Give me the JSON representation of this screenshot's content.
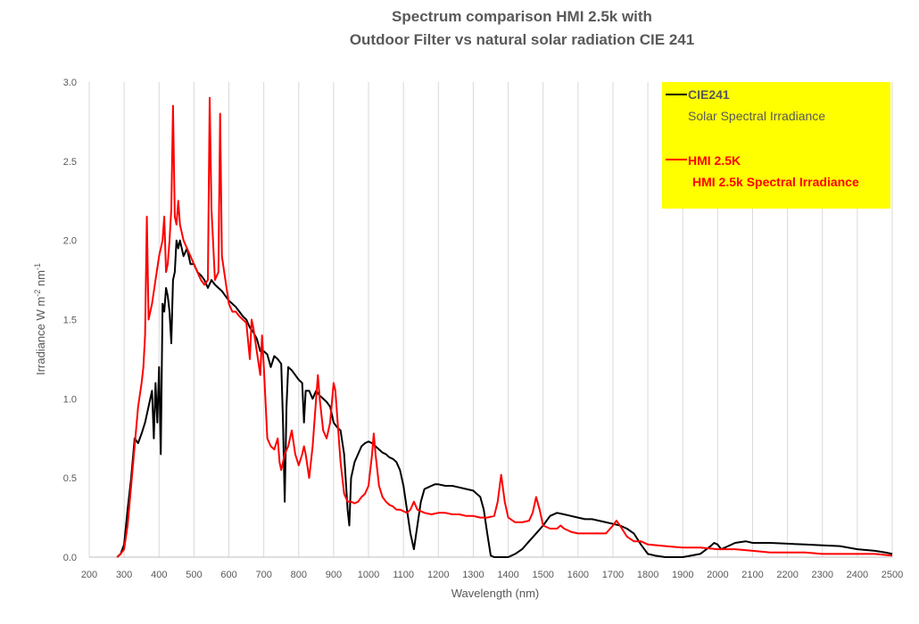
{
  "chart_data": {
    "type": "line",
    "title_lines": [
      "Spectrum comparison HMI 2.5k with",
      "Outdoor Filter vs natural solar radiation CIE 241"
    ],
    "xlabel": "Wavelength (nm)",
    "ylabel_main": "Irradiance  W m",
    "ylabel_sup1": "-2",
    "ylabel_mid": " nm",
    "ylabel_sup2": "-1",
    "xlim": [
      200,
      2500
    ],
    "ylim": [
      0,
      3.0
    ],
    "x_ticks": [
      "200",
      "300",
      "400",
      "500",
      "600",
      "700",
      "800",
      "900",
      "1000",
      "1100",
      "1200",
      "1300",
      "1400",
      "1500",
      "1600",
      "1700",
      "1800",
      "1900",
      "2000",
      "2100",
      "2200",
      "2300",
      "2400",
      "2500"
    ],
    "y_ticks": [
      "0.0",
      "0.5",
      "1.0",
      "1.5",
      "2.0",
      "2.5",
      "3.0"
    ],
    "grid": "vertical",
    "legend_position": "top-right",
    "legend_background": "#ffff00",
    "series": [
      {
        "name": "CIE241",
        "description": "Solar Spectral Irradiance",
        "color": "#000000",
        "points": [
          [
            280,
            0.0
          ],
          [
            290,
            0.02
          ],
          [
            300,
            0.08
          ],
          [
            310,
            0.3
          ],
          [
            320,
            0.5
          ],
          [
            330,
            0.75
          ],
          [
            340,
            0.72
          ],
          [
            350,
            0.78
          ],
          [
            360,
            0.85
          ],
          [
            370,
            0.95
          ],
          [
            380,
            1.05
          ],
          [
            385,
            0.75
          ],
          [
            390,
            1.1
          ],
          [
            395,
            0.85
          ],
          [
            400,
            1.2
          ],
          [
            405,
            0.65
          ],
          [
            410,
            1.6
          ],
          [
            415,
            1.55
          ],
          [
            420,
            1.7
          ],
          [
            425,
            1.65
          ],
          [
            430,
            1.55
          ],
          [
            435,
            1.35
          ],
          [
            440,
            1.75
          ],
          [
            445,
            1.8
          ],
          [
            450,
            2.0
          ],
          [
            455,
            1.95
          ],
          [
            460,
            2.0
          ],
          [
            470,
            1.9
          ],
          [
            480,
            1.95
          ],
          [
            490,
            1.85
          ],
          [
            500,
            1.85
          ],
          [
            510,
            1.8
          ],
          [
            520,
            1.78
          ],
          [
            530,
            1.75
          ],
          [
            540,
            1.7
          ],
          [
            550,
            1.75
          ],
          [
            560,
            1.72
          ],
          [
            570,
            1.7
          ],
          [
            580,
            1.68
          ],
          [
            590,
            1.65
          ],
          [
            600,
            1.62
          ],
          [
            610,
            1.6
          ],
          [
            620,
            1.58
          ],
          [
            630,
            1.55
          ],
          [
            640,
            1.52
          ],
          [
            650,
            1.5
          ],
          [
            660,
            1.45
          ],
          [
            670,
            1.42
          ],
          [
            680,
            1.38
          ],
          [
            690,
            1.3
          ],
          [
            700,
            1.3
          ],
          [
            710,
            1.28
          ],
          [
            720,
            1.2
          ],
          [
            730,
            1.27
          ],
          [
            740,
            1.25
          ],
          [
            750,
            1.22
          ],
          [
            755,
            0.85
          ],
          [
            760,
            0.35
          ],
          [
            765,
            0.95
          ],
          [
            770,
            1.2
          ],
          [
            780,
            1.18
          ],
          [
            790,
            1.15
          ],
          [
            800,
            1.12
          ],
          [
            810,
            1.1
          ],
          [
            815,
            0.85
          ],
          [
            820,
            1.05
          ],
          [
            830,
            1.05
          ],
          [
            840,
            1.0
          ],
          [
            850,
            1.05
          ],
          [
            860,
            1.02
          ],
          [
            870,
            1.0
          ],
          [
            880,
            0.98
          ],
          [
            890,
            0.95
          ],
          [
            900,
            0.85
          ],
          [
            910,
            0.82
          ],
          [
            920,
            0.8
          ],
          [
            930,
            0.65
          ],
          [
            940,
            0.3
          ],
          [
            945,
            0.2
          ],
          [
            950,
            0.5
          ],
          [
            960,
            0.6
          ],
          [
            970,
            0.65
          ],
          [
            980,
            0.7
          ],
          [
            990,
            0.72
          ],
          [
            1000,
            0.73
          ],
          [
            1010,
            0.72
          ],
          [
            1020,
            0.7
          ],
          [
            1030,
            0.68
          ],
          [
            1040,
            0.66
          ],
          [
            1050,
            0.65
          ],
          [
            1060,
            0.63
          ],
          [
            1070,
            0.62
          ],
          [
            1080,
            0.6
          ],
          [
            1090,
            0.55
          ],
          [
            1100,
            0.45
          ],
          [
            1110,
            0.3
          ],
          [
            1120,
            0.15
          ],
          [
            1130,
            0.05
          ],
          [
            1140,
            0.2
          ],
          [
            1150,
            0.35
          ],
          [
            1160,
            0.43
          ],
          [
            1170,
            0.44
          ],
          [
            1180,
            0.45
          ],
          [
            1190,
            0.46
          ],
          [
            1200,
            0.46
          ],
          [
            1220,
            0.45
          ],
          [
            1240,
            0.45
          ],
          [
            1260,
            0.44
          ],
          [
            1280,
            0.43
          ],
          [
            1300,
            0.42
          ],
          [
            1320,
            0.38
          ],
          [
            1330,
            0.3
          ],
          [
            1340,
            0.15
          ],
          [
            1350,
            0.01
          ],
          [
            1360,
            0.0
          ],
          [
            1400,
            0.0
          ],
          [
            1420,
            0.02
          ],
          [
            1440,
            0.05
          ],
          [
            1460,
            0.1
          ],
          [
            1480,
            0.15
          ],
          [
            1500,
            0.2
          ],
          [
            1520,
            0.26
          ],
          [
            1540,
            0.28
          ],
          [
            1560,
            0.27
          ],
          [
            1580,
            0.26
          ],
          [
            1600,
            0.25
          ],
          [
            1620,
            0.24
          ],
          [
            1640,
            0.24
          ],
          [
            1660,
            0.23
          ],
          [
            1680,
            0.22
          ],
          [
            1700,
            0.21
          ],
          [
            1720,
            0.2
          ],
          [
            1740,
            0.18
          ],
          [
            1760,
            0.15
          ],
          [
            1780,
            0.08
          ],
          [
            1800,
            0.02
          ],
          [
            1820,
            0.01
          ],
          [
            1850,
            0.0
          ],
          [
            1900,
            0.0
          ],
          [
            1950,
            0.02
          ],
          [
            1980,
            0.07
          ],
          [
            1990,
            0.09
          ],
          [
            2000,
            0.08
          ],
          [
            2010,
            0.05
          ],
          [
            2030,
            0.07
          ],
          [
            2050,
            0.09
          ],
          [
            2080,
            0.1
          ],
          [
            2100,
            0.09
          ],
          [
            2150,
            0.09
          ],
          [
            2200,
            0.085
          ],
          [
            2250,
            0.08
          ],
          [
            2300,
            0.075
          ],
          [
            2350,
            0.07
          ],
          [
            2400,
            0.05
          ],
          [
            2450,
            0.04
          ],
          [
            2480,
            0.03
          ],
          [
            2500,
            0.02
          ]
        ]
      },
      {
        "name": "HMI 2.5K",
        "description": "HMI 2.5k Spectral Irradiance",
        "color": "#ff0000",
        "points": [
          [
            280,
            0.0
          ],
          [
            290,
            0.02
          ],
          [
            300,
            0.05
          ],
          [
            310,
            0.2
          ],
          [
            320,
            0.45
          ],
          [
            330,
            0.7
          ],
          [
            340,
            0.95
          ],
          [
            350,
            1.1
          ],
          [
            355,
            1.2
          ],
          [
            360,
            1.4
          ],
          [
            365,
            2.15
          ],
          [
            370,
            1.5
          ],
          [
            380,
            1.6
          ],
          [
            390,
            1.75
          ],
          [
            400,
            1.9
          ],
          [
            410,
            2.0
          ],
          [
            415,
            2.15
          ],
          [
            420,
            1.8
          ],
          [
            425,
            1.85
          ],
          [
            430,
            2.0
          ],
          [
            435,
            2.2
          ],
          [
            440,
            2.85
          ],
          [
            445,
            2.15
          ],
          [
            450,
            2.1
          ],
          [
            455,
            2.25
          ],
          [
            460,
            2.1
          ],
          [
            470,
            2.0
          ],
          [
            480,
            1.95
          ],
          [
            490,
            1.9
          ],
          [
            500,
            1.85
          ],
          [
            510,
            1.8
          ],
          [
            520,
            1.75
          ],
          [
            530,
            1.72
          ],
          [
            540,
            1.75
          ],
          [
            545,
            2.9
          ],
          [
            550,
            2.2
          ],
          [
            560,
            1.75
          ],
          [
            570,
            1.8
          ],
          [
            575,
            2.8
          ],
          [
            580,
            1.9
          ],
          [
            590,
            1.75
          ],
          [
            600,
            1.6
          ],
          [
            610,
            1.55
          ],
          [
            620,
            1.55
          ],
          [
            630,
            1.52
          ],
          [
            640,
            1.5
          ],
          [
            650,
            1.48
          ],
          [
            660,
            1.25
          ],
          [
            665,
            1.5
          ],
          [
            670,
            1.45
          ],
          [
            680,
            1.3
          ],
          [
            690,
            1.15
          ],
          [
            695,
            1.4
          ],
          [
            700,
            1.2
          ],
          [
            710,
            0.75
          ],
          [
            720,
            0.7
          ],
          [
            730,
            0.68
          ],
          [
            740,
            0.75
          ],
          [
            745,
            0.6
          ],
          [
            750,
            0.55
          ],
          [
            760,
            0.65
          ],
          [
            770,
            0.7
          ],
          [
            780,
            0.8
          ],
          [
            790,
            0.65
          ],
          [
            800,
            0.58
          ],
          [
            810,
            0.65
          ],
          [
            815,
            0.7
          ],
          [
            820,
            0.65
          ],
          [
            830,
            0.5
          ],
          [
            840,
            0.7
          ],
          [
            850,
            1.0
          ],
          [
            855,
            1.15
          ],
          [
            860,
            1.0
          ],
          [
            870,
            0.8
          ],
          [
            880,
            0.75
          ],
          [
            890,
            0.85
          ],
          [
            900,
            1.1
          ],
          [
            905,
            1.05
          ],
          [
            910,
            0.9
          ],
          [
            920,
            0.6
          ],
          [
            930,
            0.4
          ],
          [
            940,
            0.35
          ],
          [
            950,
            0.35
          ],
          [
            960,
            0.34
          ],
          [
            970,
            0.35
          ],
          [
            980,
            0.38
          ],
          [
            990,
            0.4
          ],
          [
            1000,
            0.45
          ],
          [
            1010,
            0.65
          ],
          [
            1015,
            0.78
          ],
          [
            1020,
            0.65
          ],
          [
            1030,
            0.45
          ],
          [
            1040,
            0.38
          ],
          [
            1050,
            0.35
          ],
          [
            1060,
            0.33
          ],
          [
            1070,
            0.32
          ],
          [
            1080,
            0.3
          ],
          [
            1090,
            0.3
          ],
          [
            1100,
            0.29
          ],
          [
            1110,
            0.28
          ],
          [
            1120,
            0.3
          ],
          [
            1130,
            0.35
          ],
          [
            1140,
            0.3
          ],
          [
            1160,
            0.28
          ],
          [
            1180,
            0.27
          ],
          [
            1200,
            0.28
          ],
          [
            1220,
            0.28
          ],
          [
            1240,
            0.27
          ],
          [
            1260,
            0.27
          ],
          [
            1280,
            0.26
          ],
          [
            1300,
            0.26
          ],
          [
            1320,
            0.25
          ],
          [
            1340,
            0.25
          ],
          [
            1360,
            0.26
          ],
          [
            1370,
            0.35
          ],
          [
            1380,
            0.52
          ],
          [
            1390,
            0.35
          ],
          [
            1400,
            0.25
          ],
          [
            1420,
            0.22
          ],
          [
            1440,
            0.22
          ],
          [
            1460,
            0.23
          ],
          [
            1470,
            0.28
          ],
          [
            1480,
            0.38
          ],
          [
            1490,
            0.3
          ],
          [
            1500,
            0.2
          ],
          [
            1520,
            0.18
          ],
          [
            1540,
            0.18
          ],
          [
            1550,
            0.2
          ],
          [
            1560,
            0.18
          ],
          [
            1580,
            0.16
          ],
          [
            1600,
            0.15
          ],
          [
            1640,
            0.15
          ],
          [
            1680,
            0.15
          ],
          [
            1700,
            0.2
          ],
          [
            1710,
            0.23
          ],
          [
            1720,
            0.2
          ],
          [
            1740,
            0.13
          ],
          [
            1760,
            0.1
          ],
          [
            1780,
            0.1
          ],
          [
            1800,
            0.08
          ],
          [
            1850,
            0.07
          ],
          [
            1900,
            0.06
          ],
          [
            1950,
            0.06
          ],
          [
            2000,
            0.05
          ],
          [
            2050,
            0.05
          ],
          [
            2100,
            0.04
          ],
          [
            2150,
            0.03
          ],
          [
            2200,
            0.03
          ],
          [
            2250,
            0.03
          ],
          [
            2300,
            0.02
          ],
          [
            2350,
            0.02
          ],
          [
            2400,
            0.02
          ],
          [
            2450,
            0.02
          ],
          [
            2500,
            0.01
          ]
        ]
      }
    ]
  }
}
